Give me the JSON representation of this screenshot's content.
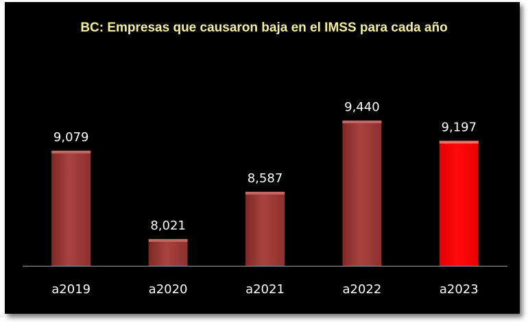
{
  "colors": {
    "background": "#000000",
    "title": "#f5f0a0",
    "bar": "#a33e3c",
    "bar_highlight": "#ff0000",
    "text": "#ffffff",
    "axis": "#9a9a9a"
  },
  "chart_data": {
    "type": "bar",
    "title": "BC: Empresas que causaron baja en el IMSS para cada año",
    "categories": [
      "a2019",
      "a2020",
      "a2021",
      "a2022",
      "a2023"
    ],
    "values": [
      9079,
      8021,
      8587,
      9440,
      9197
    ],
    "value_labels": [
      "9,079",
      "8,021",
      "8,587",
      "9,440",
      "9,197"
    ],
    "highlight_index": 4,
    "ylim": [
      7700,
      9800
    ],
    "grid": false,
    "legend": "none",
    "xlabel": "",
    "ylabel": ""
  }
}
